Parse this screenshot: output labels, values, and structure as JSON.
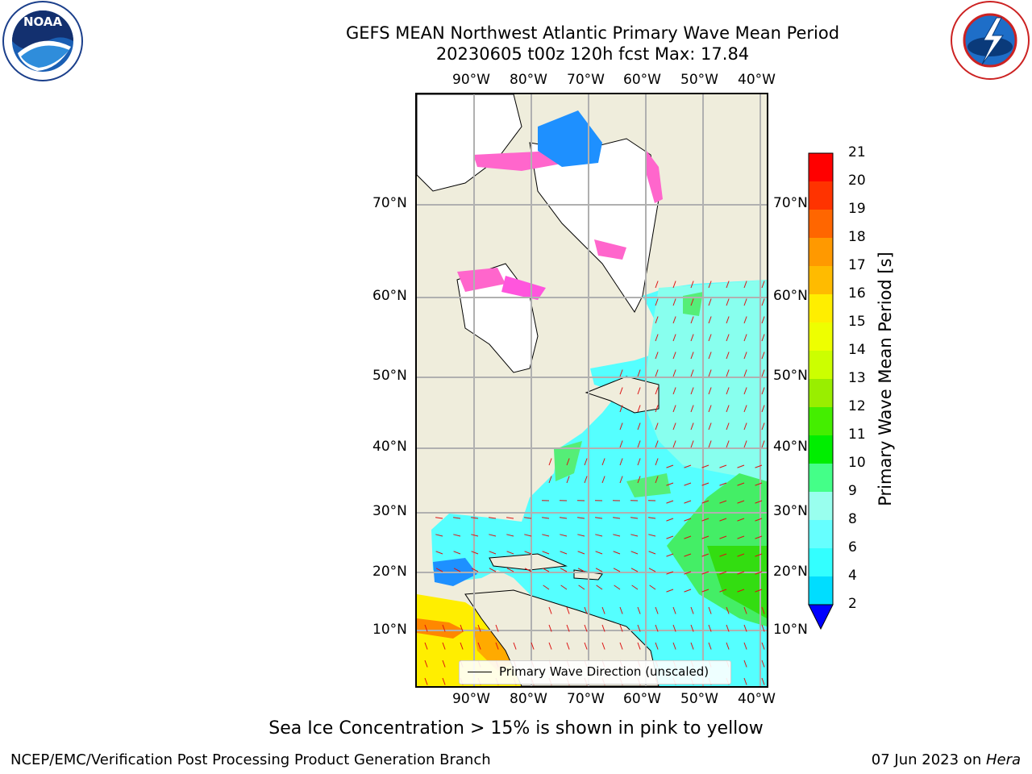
{
  "title": {
    "line1": "GEFS MEAN Northwest Atlantic Primary Wave Mean Period",
    "line2": "20230605 t00z 120h fcst   Max: 17.84"
  },
  "logos": {
    "left": "NOAA",
    "left_ring_text": "NATIONAL OCEANIC AND ATMOSPHERIC ADMINISTRATION · U.S. DEPARTMENT OF COMMERCE",
    "right_ring_text": "NATIONAL WEATHER SERVICE"
  },
  "map": {
    "lon_ticks": [
      "90°W",
      "80°W",
      "70°W",
      "60°W",
      "50°W",
      "40°W"
    ],
    "lat_ticks": [
      "70°N",
      "60°N",
      "50°N",
      "40°N",
      "30°N",
      "20°N",
      "10°N"
    ],
    "legend_label": "Primary Wave Direction (unscaled)",
    "colors": {
      "land": "#efeddc",
      "ice_land": "#ffffff",
      "wave_cyan": "#55ffff",
      "wave_light": "#99ffee",
      "wave_green": "#44ee66",
      "arrows": "#dd1111",
      "grid": "#b0b0b0"
    }
  },
  "colorbar": {
    "label": "Primary Wave Mean Period [s]",
    "tick_labels": [
      "2",
      "4",
      "6",
      "8",
      "9",
      "10",
      "11",
      "12",
      "13",
      "14",
      "15",
      "16",
      "17",
      "18",
      "19",
      "20",
      "21"
    ],
    "colors": [
      "#0060ff",
      "#00ddff",
      "#33ffff",
      "#66ffff",
      "#99ffee",
      "#44ff88",
      "#00ee00",
      "#44ee00",
      "#99ee00",
      "#ccff00",
      "#eeff00",
      "#ffee00",
      "#ffbb00",
      "#ff9900",
      "#ff6600",
      "#ff3300",
      "#ff0000"
    ],
    "under_color": "#0000ff"
  },
  "notes": {
    "sea_ice": "Sea Ice Concentration > 15% is shown in pink to yellow",
    "credit": "NCEP/EMC/Verification Post Processing Product Generation Branch",
    "date_prefix": "07 Jun 2023 on ",
    "date_machine": "Hera"
  }
}
